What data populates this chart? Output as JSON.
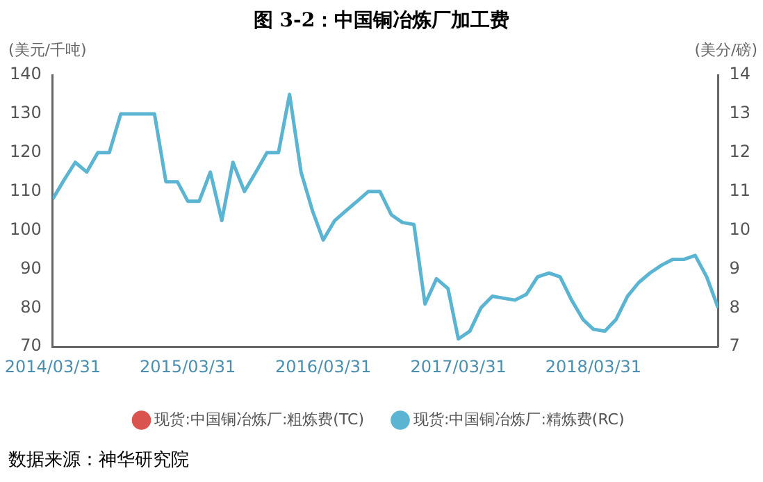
{
  "chart_data": {
    "type": "line",
    "title": "图 3-2：中国铜冶炼厂加工费",
    "ylabel": "(美元/千吨)",
    "y2label": "(美分/磅)",
    "annotations": [
      "数据来源：神华研究院"
    ],
    "x": [
      "2014-03",
      "2014-04",
      "2014-05",
      "2014-06",
      "2014-07",
      "2014-08",
      "2014-09",
      "2014-10",
      "2014-11",
      "2014-12",
      "2015-01",
      "2015-02",
      "2015-03",
      "2015-04",
      "2015-05",
      "2015-06",
      "2015-07",
      "2015-08",
      "2015-09",
      "2015-10",
      "2015-11",
      "2015-12",
      "2016-01",
      "2016-02",
      "2016-03",
      "2016-04",
      "2016-05",
      "2016-06",
      "2016-07",
      "2016-08",
      "2016-09",
      "2016-10",
      "2016-11",
      "2016-12",
      "2017-01",
      "2017-02",
      "2017-03",
      "2017-04",
      "2017-05",
      "2017-06",
      "2017-07",
      "2017-08",
      "2017-09",
      "2017-10",
      "2017-11",
      "2017-12",
      "2018-01",
      "2018-02",
      "2018-03",
      "2018-04",
      "2018-05",
      "2018-06",
      "2018-07",
      "2018-08",
      "2018-09",
      "2018-10",
      "2018-11",
      "2018-12",
      "2019-01",
      "2019-02"
    ],
    "series": [
      {
        "name": "现货:中国铜冶炼厂:粗炼费(TC)",
        "color": "#d9534f",
        "values": [
          null,
          null,
          null,
          null,
          null,
          null,
          null,
          null,
          null,
          null,
          null,
          null,
          null,
          null,
          null,
          null,
          null,
          null,
          null,
          null,
          null,
          null,
          null,
          null,
          null,
          null,
          null,
          null,
          null,
          null,
          null,
          null,
          null,
          null,
          null,
          null,
          null,
          null,
          null,
          null,
          null,
          null,
          null,
          null,
          null,
          null,
          null,
          null,
          null,
          null,
          null,
          null,
          null,
          null,
          null,
          null,
          null,
          null,
          null,
          null
        ]
      },
      {
        "name": "现货:中国铜冶炼厂:精炼费(RC)",
        "color": "#5ab4d2",
        "axis": "y2",
        "values": [
          10.8,
          11.3,
          11.75,
          11.5,
          12,
          12,
          13,
          13,
          13,
          13,
          11.25,
          11.25,
          10.75,
          10.75,
          11.5,
          10.25,
          11.75,
          11,
          11.5,
          12,
          12,
          13.5,
          11.5,
          10.5,
          9.75,
          10.25,
          10.5,
          10.75,
          11,
          11,
          10.4,
          10.2,
          10.15,
          8.1,
          8.75,
          8.5,
          7.2,
          7.4,
          8,
          8.3,
          8.25,
          8.2,
          8.35,
          8.8,
          8.9,
          8.8,
          8.2,
          7.7,
          7.45,
          7.4,
          7.7,
          8.3,
          8.65,
          8.9,
          9.1,
          9.25,
          9.25,
          9.35,
          8.8,
          8
        ]
      }
    ],
    "xlim": [
      "2014-03",
      "2019-02"
    ],
    "xticks": [
      {
        "value": "2014-03",
        "label": "2014/03/31"
      },
      {
        "value": "2015-03",
        "label": "2015/03/31"
      },
      {
        "value": "2016-03",
        "label": "2016/03/31"
      },
      {
        "value": "2017-03",
        "label": "2017/03/31"
      },
      {
        "value": "2018-03",
        "label": "2018/03/31"
      }
    ],
    "ylim": [
      70,
      140
    ],
    "yticks": [
      70,
      80,
      90,
      100,
      110,
      120,
      130,
      140
    ],
    "y2lim": [
      7,
      14
    ],
    "y2ticks": [
      7,
      8,
      9,
      10,
      11,
      12,
      13,
      14
    ],
    "grid": false,
    "legend": "bottom",
    "marker": "none",
    "line_style": "solid"
  }
}
